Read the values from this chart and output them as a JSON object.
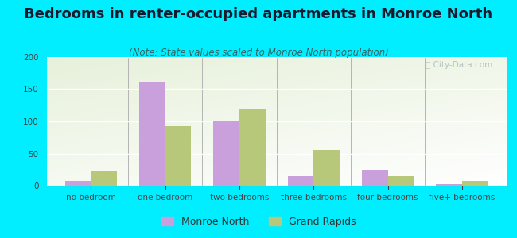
{
  "title": "Bedrooms in renter-occupied apartments in Monroe North",
  "subtitle": "(Note: State values scaled to Monroe North population)",
  "categories": [
    "no bedroom",
    "one bedroom",
    "two bedrooms",
    "three bedrooms",
    "four bedrooms",
    "five+ bedrooms"
  ],
  "monroe_north": [
    8,
    162,
    100,
    15,
    25,
    3
  ],
  "grand_rapids": [
    24,
    92,
    120,
    56,
    15,
    7
  ],
  "monroe_color": "#c9a0dc",
  "grand_rapids_color": "#b8c87a",
  "background_outer": "#00eeff",
  "ylim": [
    0,
    200
  ],
  "yticks": [
    0,
    50,
    100,
    150,
    200
  ],
  "bar_width": 0.35,
  "title_fontsize": 13,
  "subtitle_fontsize": 8.5,
  "tick_fontsize": 7.5,
  "legend_fontsize": 9
}
